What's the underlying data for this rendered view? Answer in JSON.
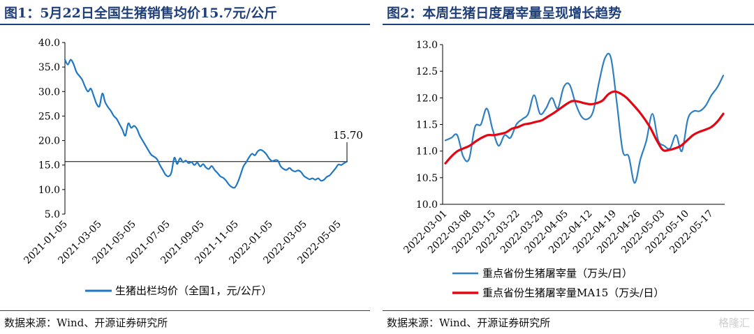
{
  "left": {
    "title": "图1：5月22日全国生猪销售均价15.7元/公斤",
    "source": "数据来源：Wind、开源证券研究所",
    "chart_data": {
      "type": "line",
      "ylim": [
        5,
        40
      ],
      "y_ticks": [
        "40.0",
        "35.0",
        "30.0",
        "25.0",
        "20.0",
        "15.0",
        "10.0",
        "5.0"
      ],
      "x_ticks": [
        "2021-01-05",
        "2021-03-05",
        "2021-05-05",
        "2021-07-05",
        "2021-09-05",
        "2021-11-05",
        "2022-01-05",
        "2022-03-05",
        "2022-05-05"
      ],
      "annotation": "15.70",
      "reference_line": 15.7,
      "series": [
        {
          "name": "生猪出栏均价（全国1，元/公斤）",
          "color": "#1f77c4",
          "values": [
            36.5,
            35.5,
            36.5,
            35.6,
            34.0,
            33.2,
            32.4,
            31.0,
            30.0,
            30.6,
            29.1,
            27.5,
            27.0,
            29.6,
            27.8,
            26.8,
            26.0,
            25.0,
            24.4,
            23.3,
            22.2,
            21.0,
            23.5,
            22.6,
            23.0,
            22.4,
            21.0,
            20.0,
            19.0,
            18.0,
            17.1,
            16.7,
            16.2,
            15.0,
            14.0,
            13.0,
            12.7,
            13.5,
            16.5,
            15.2,
            16.4,
            15.6,
            15.9,
            15.4,
            15.6,
            15.0,
            15.5,
            14.7,
            15.2,
            14.5,
            14.2,
            14.8,
            14.0,
            13.4,
            12.7,
            12.4,
            11.8,
            11.0,
            10.5,
            10.4,
            11.4,
            13.0,
            14.7,
            15.6,
            16.6,
            17.3,
            17.0,
            17.8,
            18.1,
            17.8,
            17.2,
            16.3,
            15.8,
            16.0,
            15.9,
            14.7,
            14.2,
            14.0,
            14.4,
            13.9,
            13.7,
            13.9,
            13.6,
            12.8,
            12.4,
            12.1,
            12.3,
            12.0,
            12.3,
            11.8,
            12.0,
            12.6,
            12.9,
            13.6,
            14.3,
            15.1,
            15.0,
            15.4,
            15.7
          ]
        }
      ]
    }
  },
  "right": {
    "title": "图2：本周生猪日度屠宰量呈现增长趋势",
    "source": "数据来源：Wind、开源证券研究所",
    "watermark": "格隆汇",
    "chart_data": {
      "type": "line",
      "ylim": [
        10.0,
        13.0
      ],
      "y_ticks": [
        "13.0",
        "12.5",
        "12.0",
        "11.5",
        "11.0",
        "10.5",
        "10.0"
      ],
      "x_ticks": [
        "2022-03-01",
        "2022-03-08",
        "2022-03-15",
        "2022-03-22",
        "2022-03-29",
        "2022-04-05",
        "2022-04-12",
        "2022-04-19",
        "2022-04-26",
        "2022-05-03",
        "2022-05-10",
        "2022-05-17"
      ],
      "series": [
        {
          "name": "重点省份生猪屠宰量（万头/日）",
          "color": "#2e7fc1",
          "values": [
            11.2,
            11.25,
            11.3,
            10.9,
            10.85,
            11.45,
            11.5,
            11.8,
            11.4,
            11.1,
            11.3,
            11.25,
            11.5,
            11.6,
            11.7,
            12.05,
            11.7,
            11.8,
            12.0,
            11.8,
            12.2,
            12.25,
            11.9,
            11.65,
            11.6,
            11.75,
            12.3,
            12.75,
            12.75,
            11.9,
            11.0,
            10.9,
            10.4,
            10.85,
            11.2,
            11.7,
            11.2,
            11.1,
            11.05,
            11.3,
            11.0,
            11.6,
            11.75,
            11.75,
            11.85,
            12.05,
            12.2,
            12.42
          ]
        },
        {
          "name": "重点省份生猪屠宰量MA15（万头/日）",
          "color": "#e30613",
          "values": [
            10.77,
            10.9,
            11.0,
            11.05,
            11.1,
            11.18,
            11.25,
            11.3,
            11.3,
            11.32,
            11.35,
            11.42,
            11.45,
            11.5,
            11.52,
            11.55,
            11.58,
            11.65,
            11.72,
            11.8,
            11.88,
            11.94,
            11.93,
            11.9,
            11.88,
            11.9,
            11.95,
            12.07,
            12.12,
            12.08,
            12.0,
            11.88,
            11.75,
            11.6,
            11.42,
            11.2,
            11.02,
            11.02,
            11.05,
            11.1,
            11.2,
            11.3,
            11.36,
            11.4,
            11.45,
            11.55,
            11.7
          ]
        }
      ]
    }
  }
}
